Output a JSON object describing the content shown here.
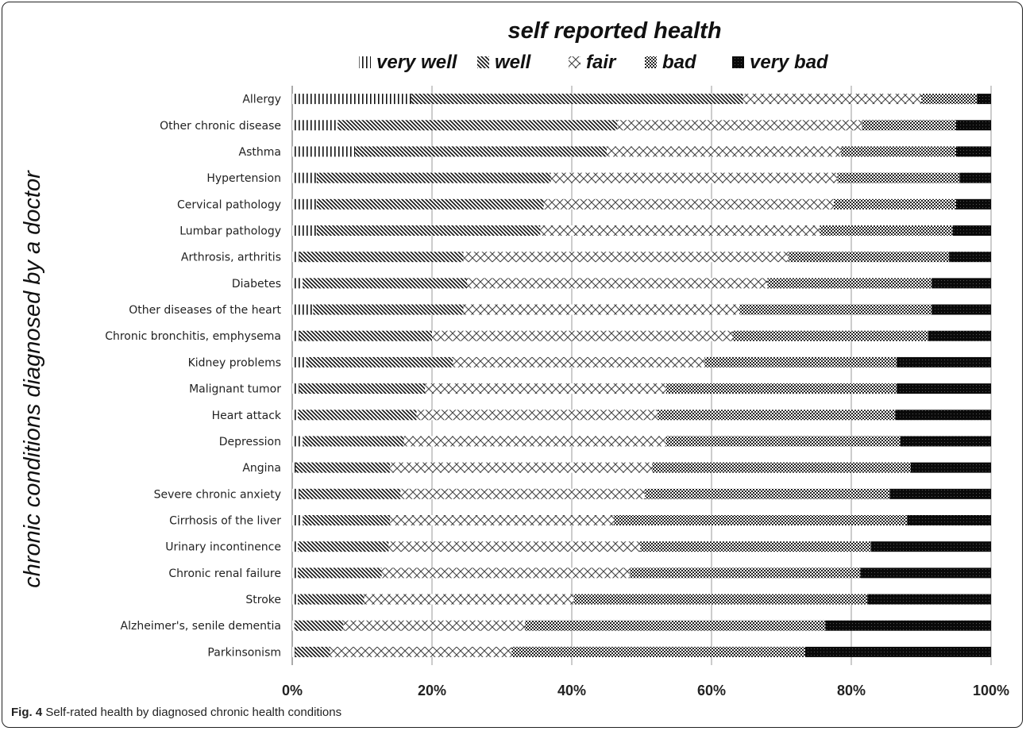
{
  "caption": {
    "label": "Fig. 4",
    "text": "Self-rated health by diagnosed chronic health conditions"
  },
  "chart_data": {
    "type": "bar",
    "orientation": "horizontal",
    "stacked": "percent",
    "title": "self reported health",
    "ylabel": "chronic conditions diagnosed by a doctor",
    "xlabel": "",
    "x_ticks": [
      "0%",
      "20%",
      "40%",
      "60%",
      "80%",
      "100%"
    ],
    "xlim": [
      0,
      100
    ],
    "grid": "vertical",
    "legend_position": "top",
    "categories": [
      "Allergy",
      "Other chronic disease",
      "Asthma",
      "Hypertension",
      "Cervical pathology",
      "Lumbar pathology",
      "Arthrosis, arthritis",
      "Diabetes",
      "Other diseases of the heart",
      "Chronic bronchitis, emphysema",
      "Kidney problems",
      "Malignant tumor",
      "Heart attack",
      "Depression",
      "Angina",
      "Severe chronic anxiety",
      "Cirrhosis of the liver",
      "Urinary incontinence",
      "Chronic renal failure",
      "Stroke",
      "Alzheimer's, senile dementia",
      "Parkinsonism"
    ],
    "series": [
      {
        "name": "very well",
        "pattern": "vertical-lines",
        "values": [
          17,
          6.5,
          9,
          3.5,
          3.5,
          3.5,
          1,
          1.5,
          3,
          1,
          2,
          1,
          0.8,
          1.5,
          0.5,
          1,
          1.5,
          0.8,
          0.8,
          0.8,
          0.3,
          0.4
        ]
      },
      {
        "name": "well",
        "pattern": "diagonal-hatch",
        "values": [
          47.5,
          40,
          36,
          33.5,
          32.5,
          32,
          23.5,
          23.5,
          21.5,
          19,
          21,
          18,
          17,
          14.5,
          13.5,
          14.5,
          12.5,
          13,
          12,
          9.5,
          7,
          5
        ]
      },
      {
        "name": "fair",
        "pattern": "crosses",
        "values": [
          25.5,
          35,
          33.5,
          41,
          41.5,
          40,
          46.5,
          43,
          39.5,
          43,
          36,
          34.5,
          34.5,
          37.5,
          37.5,
          35,
          32,
          36,
          35.5,
          30,
          26,
          26
        ]
      },
      {
        "name": "bad",
        "pattern": "checker",
        "values": [
          8,
          13.5,
          16.5,
          17.5,
          17.5,
          19,
          23,
          23.5,
          27.5,
          28,
          27.5,
          33,
          34,
          33.5,
          37,
          35,
          42,
          33,
          33,
          42,
          43,
          42
        ]
      },
      {
        "name": "very bad",
        "pattern": "solid",
        "values": [
          2,
          5,
          5,
          4.5,
          5,
          5.5,
          6,
          8.5,
          8.5,
          9,
          13.5,
          13.5,
          13.7,
          13,
          11.5,
          14.5,
          12,
          17.2,
          18.7,
          17.7,
          23.7,
          26.6
        ]
      }
    ]
  }
}
